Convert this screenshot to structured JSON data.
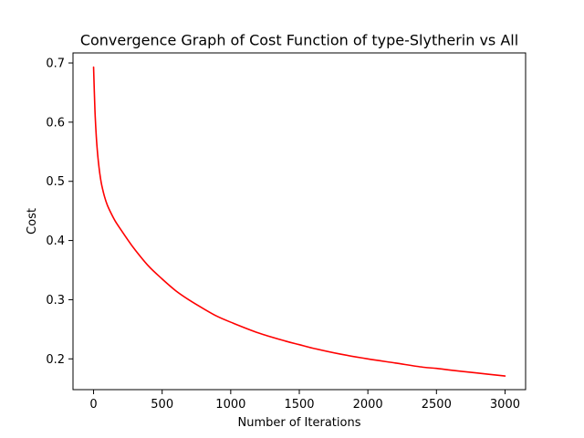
{
  "chart_data": {
    "type": "line",
    "title": "Convergence Graph of Cost Function of type-Slytherin vs All",
    "xlabel": "Number of Iterations",
    "ylabel": "Cost",
    "xlim": [
      -150,
      3150
    ],
    "ylim": [
      0.148,
      0.717
    ],
    "xticks": [
      0,
      500,
      1000,
      1500,
      2000,
      2500,
      3000
    ],
    "xtick_labels": [
      "0",
      "500",
      "1000",
      "1500",
      "2000",
      "2500",
      "3000"
    ],
    "yticks": [
      0.2,
      0.3,
      0.4,
      0.5,
      0.6,
      0.7
    ],
    "ytick_labels": [
      "0.2",
      "0.3",
      "0.4",
      "0.5",
      "0.6",
      "0.7"
    ],
    "grid": false,
    "legend": "none",
    "series": [
      {
        "color": "#ff0000",
        "x": [
          0,
          10,
          20,
          30,
          40,
          50,
          60,
          80,
          100,
          130,
          160,
          200,
          250,
          300,
          400,
          500,
          600,
          700,
          800,
          900,
          1000,
          1200,
          1400,
          1500,
          1600,
          1800,
          2000,
          2200,
          2400,
          2500,
          2600,
          2800,
          3000
        ],
        "y": [
          0.693,
          0.62,
          0.575,
          0.545,
          0.523,
          0.506,
          0.493,
          0.474,
          0.46,
          0.445,
          0.432,
          0.418,
          0.401,
          0.385,
          0.357,
          0.335,
          0.315,
          0.299,
          0.285,
          0.272,
          0.262,
          0.244,
          0.23,
          0.224,
          0.218,
          0.208,
          0.2,
          0.193,
          0.186,
          0.184,
          0.181,
          0.176,
          0.171
        ]
      }
    ]
  }
}
